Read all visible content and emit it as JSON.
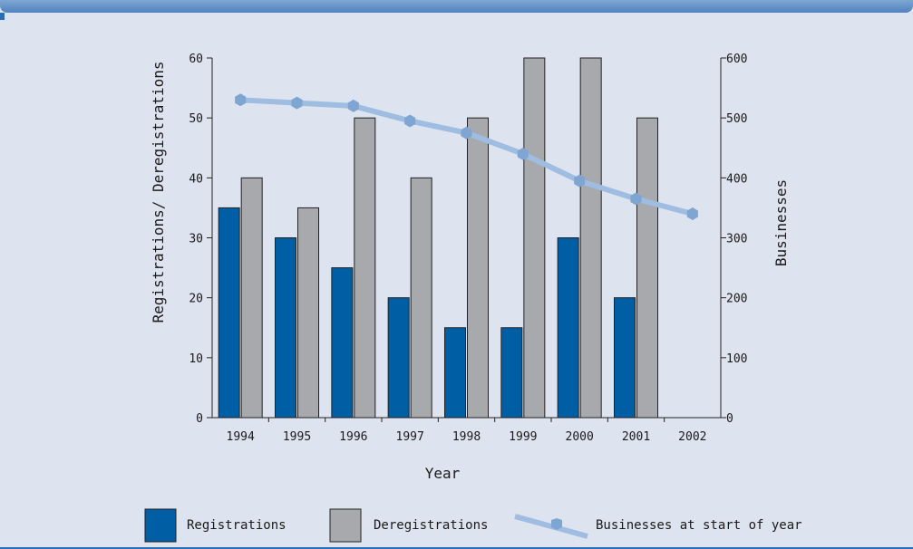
{
  "chart_data": {
    "type": "bar",
    "categories": [
      "1994",
      "1995",
      "1996",
      "1997",
      "1998",
      "1999",
      "2000",
      "2001",
      "2002"
    ],
    "series": [
      {
        "name": "Registrations",
        "type": "bar",
        "axis": "left",
        "color": "#005ea5",
        "values": [
          35,
          30,
          25,
          20,
          15,
          15,
          30,
          20,
          null
        ]
      },
      {
        "name": "Deregistrations",
        "type": "bar",
        "axis": "left",
        "color": "#a7a9ac",
        "values": [
          40,
          35,
          50,
          40,
          50,
          60,
          60,
          50,
          null
        ]
      },
      {
        "name": "Businesses at start of year",
        "type": "line",
        "axis": "right",
        "color": "#9fbde0",
        "values": [
          530,
          525,
          520,
          495,
          475,
          440,
          395,
          365,
          340
        ]
      }
    ],
    "xlabel": "Year",
    "ylabel": "Registrations/ Deregistrations",
    "y2label": "Businesses",
    "ylim": [
      0,
      60
    ],
    "y2lim": [
      0,
      600
    ],
    "yticks": [
      "0",
      "10",
      "20",
      "30",
      "40",
      "50",
      "60"
    ],
    "y2ticks": [
      "0",
      "100",
      "200",
      "300",
      "400",
      "500",
      "600"
    ],
    "legend": {
      "position": "bottom",
      "items": [
        {
          "label": "Registrations",
          "swatch": "bar",
          "color": "#005ea5"
        },
        {
          "label": "Deregistrations",
          "swatch": "bar",
          "color": "#a7a9ac"
        },
        {
          "label": "Businesses at start of year",
          "swatch": "line",
          "color": "#9fbde0"
        }
      ]
    },
    "grid": false
  }
}
